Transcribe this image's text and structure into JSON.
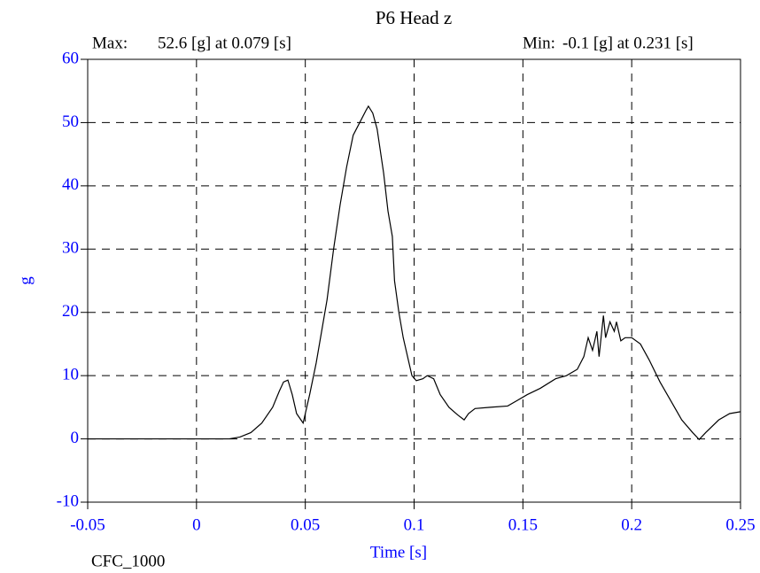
{
  "chart_data": {
    "type": "line",
    "title": "P6 Head z",
    "annotations": {
      "max_label": "Max:",
      "max_text": "52.6 [g] at 0.079 [s]",
      "min_label": "Min:",
      "min_text": "-0.1 [g] at 0.231 [s]",
      "filter": "CFC_1000"
    },
    "xlabel": "Time [s]",
    "ylabel": "g",
    "xlim": [
      -0.05,
      0.25
    ],
    "xticks": [
      -0.05,
      0,
      0.05,
      0.1,
      0.15,
      0.2,
      0.25
    ],
    "ylim": [
      -10,
      60
    ],
    "yticks": [
      -10,
      0,
      10,
      20,
      30,
      40,
      50,
      60
    ],
    "grid": true,
    "series": [
      {
        "color": "#000000",
        "x": [
          -0.05,
          0.015,
          0.02,
          0.025,
          0.03,
          0.035,
          0.038,
          0.04,
          0.042,
          0.044,
          0.046,
          0.048,
          0.049,
          0.05,
          0.052,
          0.055,
          0.058,
          0.06,
          0.063,
          0.066,
          0.069,
          0.072,
          0.075,
          0.078,
          0.079,
          0.081,
          0.083,
          0.086,
          0.088,
          0.09,
          0.091,
          0.093,
          0.095,
          0.097,
          0.099,
          0.101,
          0.104,
          0.106,
          0.109,
          0.112,
          0.116,
          0.12,
          0.123,
          0.125,
          0.128,
          0.135,
          0.143,
          0.147,
          0.152,
          0.158,
          0.165,
          0.17,
          0.175,
          0.178,
          0.18,
          0.182,
          0.184,
          0.185,
          0.187,
          0.188,
          0.19,
          0.192,
          0.193,
          0.195,
          0.197,
          0.2,
          0.204,
          0.208,
          0.213,
          0.218,
          0.223,
          0.228,
          0.231,
          0.234,
          0.24,
          0.245,
          0.25
        ],
        "values": [
          0,
          0,
          0.3,
          1,
          2.5,
          5,
          7.5,
          9,
          9.3,
          7,
          4,
          3,
          2.5,
          4,
          7,
          12,
          18,
          22,
          30,
          37,
          43,
          48,
          50,
          52,
          52.6,
          51.5,
          49,
          42,
          36,
          32,
          25,
          20,
          16,
          13,
          10,
          9.2,
          9.5,
          10,
          9.5,
          7,
          5,
          3.8,
          3,
          4,
          4.8,
          5,
          5.2,
          6,
          7,
          8,
          9.5,
          10,
          11,
          13,
          16,
          14,
          17,
          13,
          19.5,
          16,
          18.5,
          17,
          18.5,
          15.5,
          16,
          16,
          15,
          12.5,
          9,
          6,
          3,
          1,
          -0.1,
          1,
          3,
          4,
          4.3
        ]
      }
    ]
  }
}
